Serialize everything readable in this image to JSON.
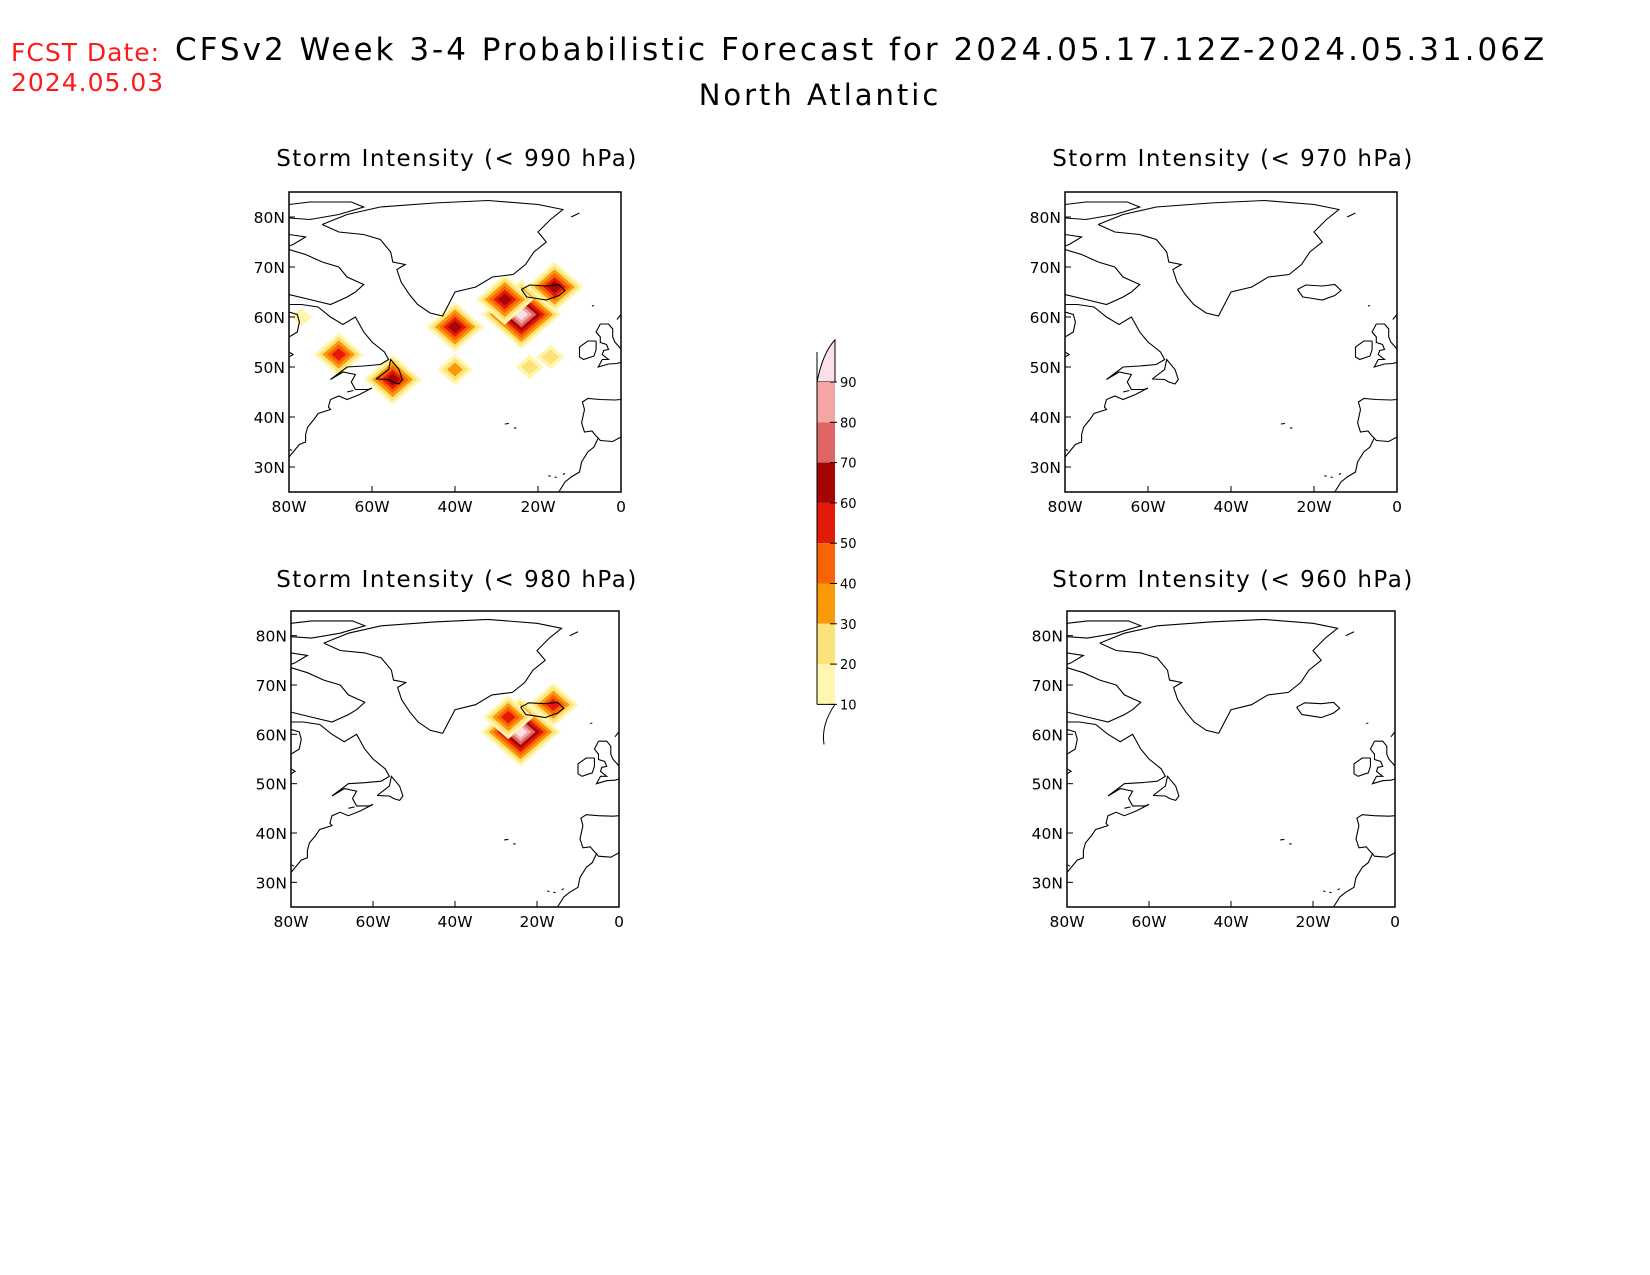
{
  "header": {
    "fcst_label": "FCST Date:",
    "fcst_date": "2024.05.03",
    "title": "CFSv2 Week 3-4 Probabilistic Forecast for 2024.05.17.12Z-2024.05.31.06Z",
    "subtitle": "North Atlantic"
  },
  "panels": [
    {
      "id": "p990",
      "title": "Storm Intensity (< 990 hPa)"
    },
    {
      "id": "p970",
      "title": "Storm Intensity (< 970 hPa)"
    },
    {
      "id": "p980",
      "title": "Storm Intensity (< 980 hPa)"
    },
    {
      "id": "p960",
      "title": "Storm Intensity (< 960 hPa)"
    }
  ],
  "axes": {
    "lon_ticks": [
      "80W",
      "60W",
      "40W",
      "20W",
      "0"
    ],
    "lat_ticks": [
      "80N",
      "70N",
      "60N",
      "50N",
      "40N",
      "30N"
    ]
  },
  "colorbar": {
    "levels": [
      "10",
      "20",
      "30",
      "40",
      "50",
      "60",
      "70",
      "80",
      "90"
    ],
    "colors": [
      "#fff7b0",
      "#fde27a",
      "#fb9a08",
      "#fa6206",
      "#e31a07",
      "#a50505",
      "#e06666",
      "#f4a6a6",
      "#fde0e6"
    ]
  },
  "chart_data": {
    "type": "heatmap",
    "units": "probability (%)",
    "lon_range": [
      -80,
      0
    ],
    "lat_range": [
      25,
      85
    ],
    "panels": [
      {
        "threshold_hPa": 990,
        "blobs": [
          {
            "lon": -68,
            "lat": 52.5,
            "peak": 50
          },
          {
            "lon": -55,
            "lat": 47.5,
            "peak": 60
          },
          {
            "lon": -40,
            "lat": 58,
            "peak": 60
          },
          {
            "lon": -40,
            "lat": 49.5,
            "peak": 30
          },
          {
            "lon": -24,
            "lat": 60.5,
            "peak": 90
          },
          {
            "lon": -28,
            "lat": 63.5,
            "peak": 60
          },
          {
            "lon": -16,
            "lat": 66,
            "peak": 60
          },
          {
            "lon": -17,
            "lat": 52,
            "peak": 20
          },
          {
            "lon": -22,
            "lat": 50,
            "peak": 20
          },
          {
            "lon": -77,
            "lat": 60,
            "peak": 10
          }
        ]
      },
      {
        "threshold_hPa": 970,
        "blobs": []
      },
      {
        "threshold_hPa": 980,
        "blobs": [
          {
            "lon": -24,
            "lat": 60.5,
            "peak": 90
          },
          {
            "lon": -27,
            "lat": 63.5,
            "peak": 50
          },
          {
            "lon": -16,
            "lat": 66,
            "peak": 50
          }
        ]
      },
      {
        "threshold_hPa": 960,
        "blobs": []
      }
    ]
  }
}
